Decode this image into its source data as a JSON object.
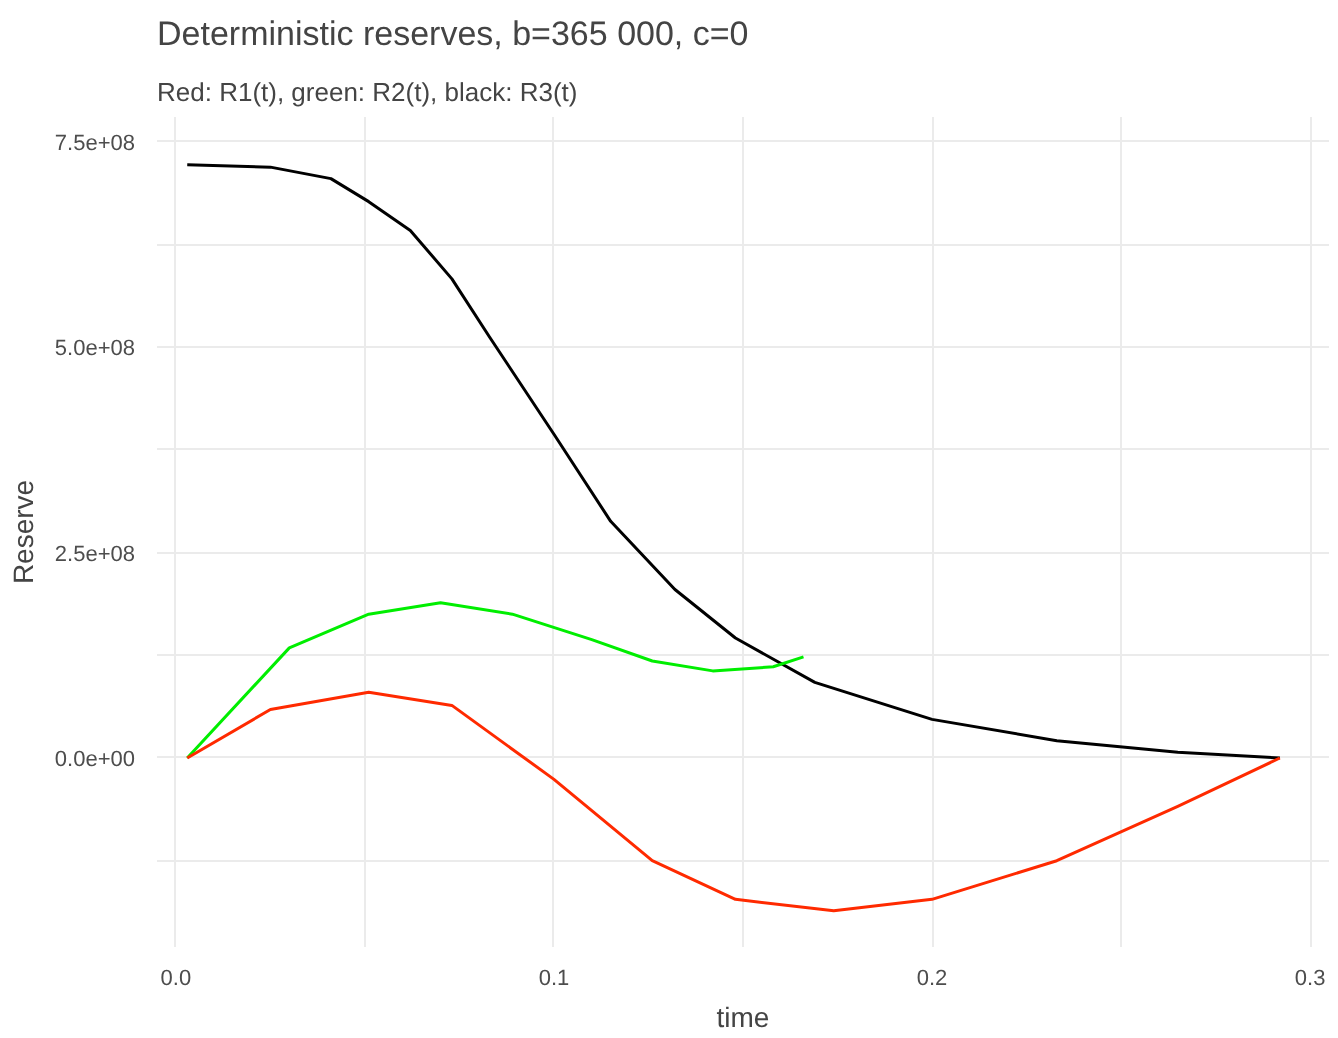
{
  "chart_data": {
    "type": "line",
    "title": "Deterministic reserves, b=365 000, c=0",
    "subtitle": "Red: R1(t), green: R2(t), black: R3(t)",
    "xlabel": "time",
    "ylabel": "Reserve",
    "xlim": [
      -0.005,
      0.305
    ],
    "ylim": [
      -230000000,
      780000000
    ],
    "xticks": [
      {
        "value": 0,
        "label": "0.0"
      },
      {
        "value": 0.05,
        "label": null
      },
      0.1,
      {
        "value": 0.15,
        "label": null
      },
      0.2,
      {
        "value": 0.25,
        "label": null
      },
      0.3
    ],
    "yticks": [
      {
        "value": -125000000,
        "label": null
      },
      {
        "value": 0,
        "label": "0.0e+00"
      },
      {
        "value": 125000000,
        "label": null
      },
      {
        "value": 250000000,
        "label": "2.5e+08"
      },
      {
        "value": 375000000,
        "label": null
      },
      {
        "value": 500000000,
        "label": "5.0e+08"
      },
      {
        "value": 625000000,
        "label": null
      },
      {
        "value": 750000000,
        "label": "7.5e+08"
      }
    ],
    "grid": true,
    "marker": "none",
    "line_style": "solid",
    "series": [
      {
        "color": "#000000",
        "x": [
          0.003,
          0.025,
          0.041,
          0.051,
          0.062,
          0.073,
          0.083,
          0.1,
          0.115,
          0.132,
          0.148,
          0.169,
          0.2,
          0.233,
          0.265,
          0.292
        ],
        "values": [
          722000000,
          719000000,
          705000000,
          677000000,
          642000000,
          583000000,
          512000000,
          394000000,
          288000000,
          205000000,
          146000000,
          92000000,
          47000000,
          21000000,
          7000000,
          0
        ]
      },
      {
        "color": "#00ee00",
        "x": [
          0.003,
          0.03,
          0.051,
          0.07,
          0.089,
          0.11,
          0.126,
          0.142,
          0.158,
          0.166
        ],
        "values": [
          0,
          134000000,
          175000000,
          189000000,
          175000000,
          144000000,
          118000000,
          106000000,
          111000000,
          123000000
        ]
      },
      {
        "color": "#ff2a00",
        "x": [
          0.003,
          0.025,
          0.051,
          0.073,
          0.1,
          0.126,
          0.148,
          0.174,
          0.2,
          0.233,
          0.265,
          0.292
        ],
        "values": [
          0,
          59000000,
          80000000,
          64000000,
          -26000000,
          -125000000,
          -172000000,
          -186000000,
          -172000000,
          -125000000,
          -59000000,
          0
        ]
      }
    ]
  }
}
